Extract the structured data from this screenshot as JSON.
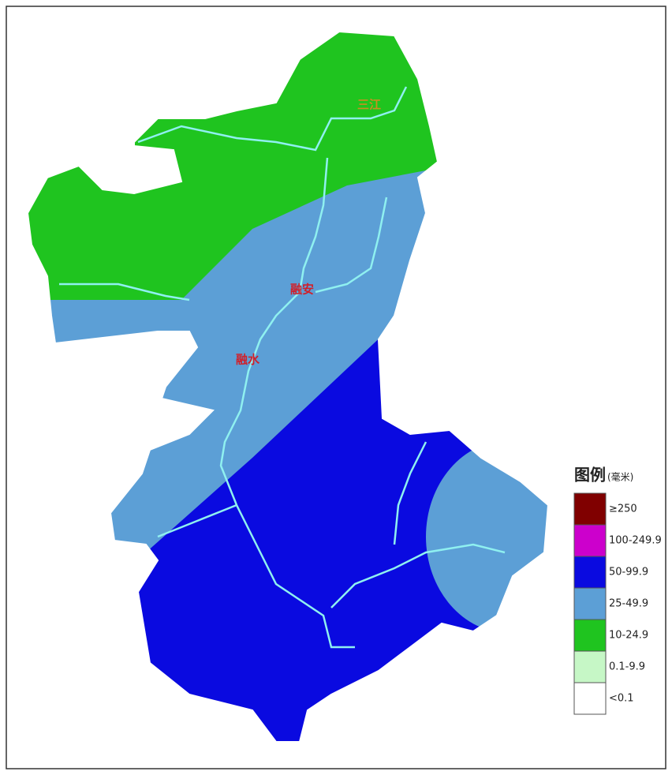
{
  "map": {
    "places": [
      {
        "label": "三江"
      },
      {
        "label": "融安"
      },
      {
        "label": "融水"
      }
    ],
    "legend": {
      "title": "图例",
      "unit": "(毫米)",
      "items": [
        {
          "label": "≥250",
          "color": "#800000"
        },
        {
          "label": "100-249.9",
          "color": "#cc00cc"
        },
        {
          "label": "50-99.9",
          "color": "#0a0ae0"
        },
        {
          "label": "25-49.9",
          "color": "#5c9fd6"
        },
        {
          "label": "10-24.9",
          "color": "#1fc41f"
        },
        {
          "label": "0.1-9.9",
          "color": "#c6f7c6"
        },
        {
          "label": "<0.1",
          "color": "#ffffff"
        }
      ]
    }
  }
}
